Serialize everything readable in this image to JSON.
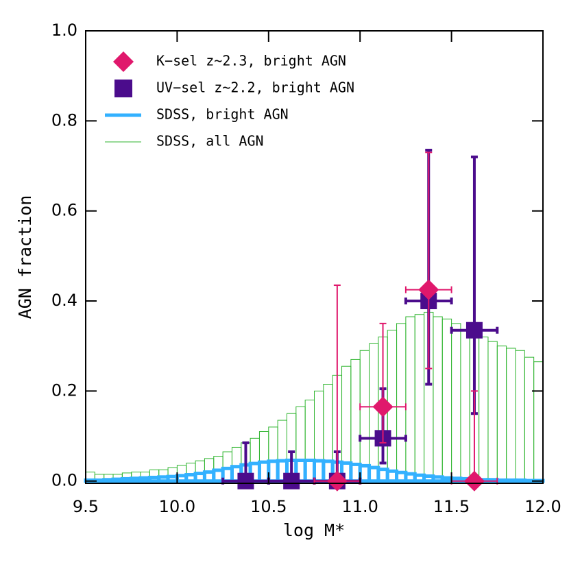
{
  "chart_data": {
    "type": "histogram",
    "xlabel": "log M*",
    "ylabel": "AGN fraction",
    "xlim": [
      9.5,
      12.0
    ],
    "ylim": [
      -0.005,
      1.0
    ],
    "xticks": [
      9.5,
      {
        "value": 10,
        "label": "10.0"
      },
      10.5,
      {
        "value": 11,
        "label": "11.0"
      },
      11.5,
      {
        "value": 12,
        "label": "12.0"
      }
    ],
    "yticks": [
      {
        "value": 0,
        "label": "0.0"
      },
      0.2,
      0.4,
      0.6,
      0.8,
      {
        "value": 1,
        "label": "1.0"
      }
    ],
    "bins": [
      9.5,
      9.55,
      9.6,
      9.65,
      9.7,
      9.75,
      9.8,
      9.85,
      9.9,
      9.95,
      10.0,
      10.05,
      10.1,
      10.15,
      10.2,
      10.25,
      10.3,
      10.35,
      10.4,
      10.45,
      10.5,
      10.55,
      10.6,
      10.65,
      10.7,
      10.75,
      10.8,
      10.85,
      10.9,
      10.95,
      11.0,
      11.05,
      11.1,
      11.15,
      11.2,
      11.25,
      11.3,
      11.35,
      11.4,
      11.45,
      11.5,
      11.55,
      11.6,
      11.65,
      11.7,
      11.75,
      11.8,
      11.85,
      11.9,
      11.95,
      12.0
    ],
    "series": [
      {
        "name": "K−sel z~2.3, bright AGN",
        "type": "scatter",
        "marker": "diamond",
        "color": "#e0186c",
        "x": [
          10.875,
          11.125,
          11.375,
          11.625
        ],
        "values": [
          0,
          0.165,
          0.425,
          0
        ],
        "xerr": [
          0.125,
          0.125,
          0.125,
          0.125
        ],
        "yerr_minus": [
          0,
          0.08,
          0.175,
          0
        ],
        "yerr_plus": [
          0.435,
          0.185,
          0.305,
          0.2
        ]
      },
      {
        "name": "UV−sel z~2.2, bright AGN",
        "type": "scatter",
        "marker": "square",
        "color": "#4b0c8c",
        "x": [
          10.375,
          10.625,
          10.875,
          11.125,
          11.375,
          11.625
        ],
        "values": [
          0,
          0,
          0,
          0.095,
          0.4,
          0.335
        ],
        "xerr": [
          0.125,
          0.125,
          0.125,
          0.125,
          0.125,
          0.125
        ],
        "yerr_minus": [
          0,
          0,
          0,
          0.055,
          0.185,
          0.185
        ],
        "yerr_plus": [
          0.085,
          0.065,
          0.065,
          0.11,
          0.335,
          0.385
        ]
      },
      {
        "name": "SDSS, bright AGN",
        "type": "histogram",
        "color": "#33b1ff",
        "line_width": 5,
        "values": [
          0.002,
          0.002,
          0.003,
          0.004,
          0.005,
          0.006,
          0.007,
          0.008,
          0.009,
          0.01,
          0.012,
          0.014,
          0.017,
          0.02,
          0.024,
          0.028,
          0.032,
          0.036,
          0.039,
          0.042,
          0.044,
          0.045,
          0.046,
          0.046,
          0.046,
          0.045,
          0.044,
          0.042,
          0.04,
          0.037,
          0.034,
          0.03,
          0.026,
          0.022,
          0.019,
          0.016,
          0.013,
          0.011,
          0.009,
          0.007,
          0.006,
          0.005,
          0.004,
          0.003,
          0.003,
          0.002,
          0.002,
          0.002,
          0.001,
          0.001
        ]
      },
      {
        "name": "SDSS, all AGN",
        "type": "histogram",
        "color": "#2fb52f",
        "line_width": 1,
        "values": [
          0.02,
          0.015,
          0.015,
          0.015,
          0.018,
          0.02,
          0.02,
          0.025,
          0.025,
          0.03,
          0.035,
          0.04,
          0.045,
          0.05,
          0.055,
          0.065,
          0.075,
          0.085,
          0.095,
          0.11,
          0.12,
          0.135,
          0.15,
          0.165,
          0.18,
          0.2,
          0.215,
          0.235,
          0.255,
          0.27,
          0.29,
          0.305,
          0.32,
          0.335,
          0.35,
          0.365,
          0.37,
          0.375,
          0.365,
          0.36,
          0.35,
          0.335,
          0.325,
          0.32,
          0.31,
          0.3,
          0.295,
          0.29,
          0.275,
          0.265
        ]
      }
    ]
  }
}
